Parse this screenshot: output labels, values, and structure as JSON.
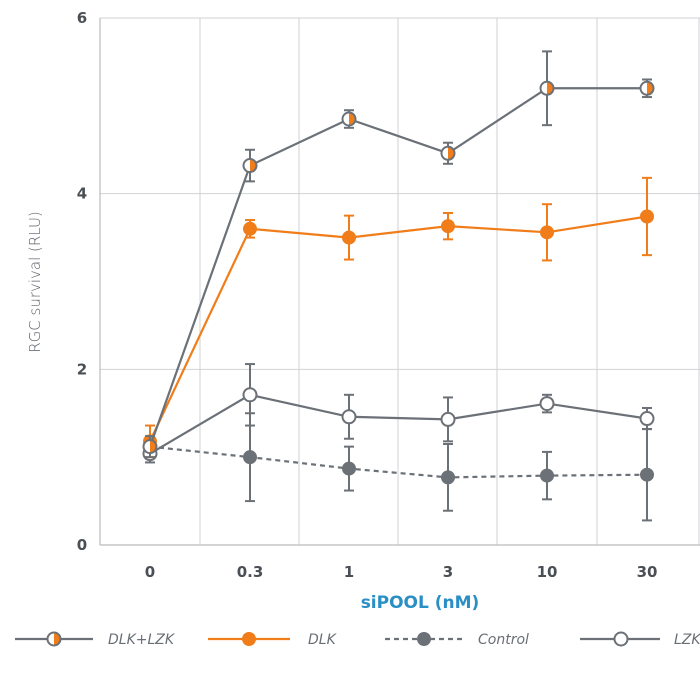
{
  "chart_data": {
    "type": "line",
    "xlabel": "siPOOL (nM)",
    "ylabel": "RGC survival (RLU)",
    "categories": [
      "0",
      "0.3",
      "1",
      "3",
      "10",
      "30"
    ],
    "ylim": [
      0,
      6
    ],
    "yticks": [
      0,
      2,
      4,
      6
    ],
    "grid": true,
    "legend_position": "bottom",
    "series": [
      {
        "name": "DLK+LZK",
        "color": "#6b7177",
        "marker": "half-filled",
        "marker_fill": "#f07d1a",
        "line_style": "solid",
        "values": [
          1.12,
          4.32,
          4.85,
          4.46,
          5.2,
          5.2
        ],
        "errors": [
          0.12,
          0.18,
          0.1,
          0.12,
          0.42,
          0.1
        ]
      },
      {
        "name": "DLK",
        "color": "#f07d1a",
        "marker": "filled",
        "marker_fill": "#f07d1a",
        "line_style": "solid",
        "values": [
          1.18,
          3.6,
          3.5,
          3.63,
          3.56,
          3.74
        ],
        "errors": [
          0.18,
          0.1,
          0.25,
          0.15,
          0.32,
          0.44
        ]
      },
      {
        "name": "Control",
        "color": "#6b7177",
        "marker": "filled",
        "marker_fill": "#6b7177",
        "line_style": "dashed",
        "values": [
          1.12,
          1.0,
          0.87,
          0.77,
          0.79,
          0.8
        ],
        "errors": [
          0.1,
          0.5,
          0.25,
          0.38,
          0.27,
          0.52
        ]
      },
      {
        "name": "LZK",
        "color": "#6b7177",
        "marker": "open",
        "marker_fill": "#ffffff",
        "line_style": "solid",
        "values": [
          1.04,
          1.71,
          1.46,
          1.43,
          1.61,
          1.44
        ],
        "errors": [
          0.1,
          0.35,
          0.25,
          0.25,
          0.1,
          0.12
        ]
      }
    ]
  }
}
